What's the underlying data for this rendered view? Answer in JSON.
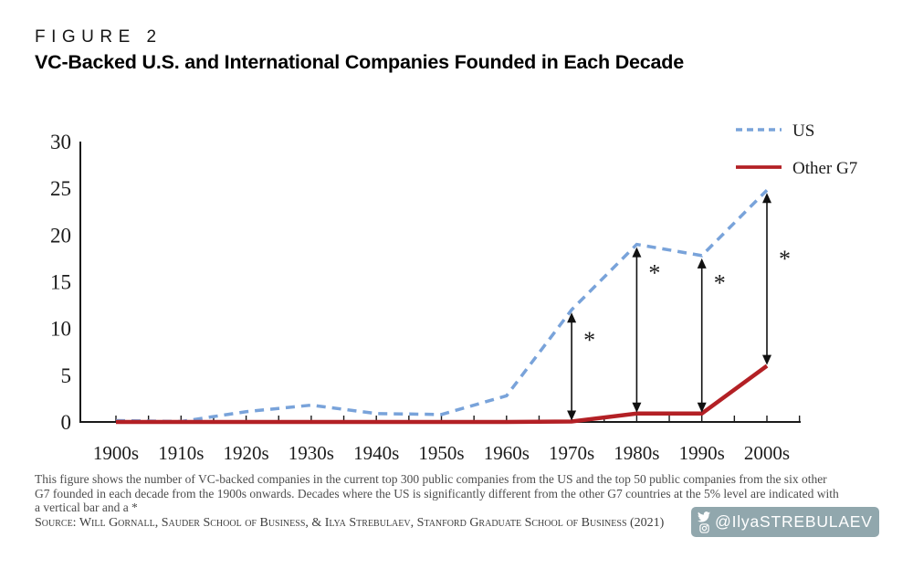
{
  "header": {
    "figure_label": "FIGURE 2",
    "title": "VC-Backed U.S. and International Companies Founded in Each Decade"
  },
  "chart_data": {
    "type": "line",
    "categories": [
      "1900s",
      "1910s",
      "1920s",
      "1930s",
      "1940s",
      "1950s",
      "1960s",
      "1970s",
      "1980s",
      "1990s",
      "2000s"
    ],
    "series": [
      {
        "name": "US",
        "style": "dashed",
        "color": "#79a3da",
        "values": [
          0.15,
          0.05,
          1.1,
          1.8,
          0.9,
          0.8,
          2.8,
          12,
          19,
          17.8,
          24.8
        ]
      },
      {
        "name": "Other G7",
        "style": "solid",
        "color": "#b32025",
        "values": [
          0,
          0,
          0,
          0,
          0,
          0,
          0,
          0.05,
          0.9,
          0.9,
          6
        ]
      }
    ],
    "ylabel": "",
    "xlabel": "",
    "ylim": [
      0,
      30
    ],
    "yticks": [
      0,
      5,
      10,
      15,
      20,
      25,
      30
    ],
    "grid": false,
    "legend_position": "top-right",
    "significance_markers": {
      "symbol": "*",
      "note": "double-headed vertical arrow between US and Other G7 lines",
      "decades": [
        "1970s",
        "1980s",
        "1990s",
        "2000s"
      ],
      "indices": [
        7,
        8,
        9,
        10
      ],
      "asterisk_offset_fraction": [
        0.25,
        0.155,
        0.157,
        0.38
      ]
    }
  },
  "legend": {
    "items": [
      "US",
      "Other G7"
    ]
  },
  "footnote": {
    "lines": [
      "This figure shows the number of VC-backed companies in the current top 300 public companies from the US and the top 50 public companies from the six other",
      "G7 founded in each decade from the 1900s onwards. Decades where the US is significantly different from the other G7 countries at the 5% level are indicated with",
      "a vertical bar and a *"
    ]
  },
  "source": "Source: Will Gornall, Sauder School of Business, & Ilya Strebulaev, Stanford Graduate School of Business (2021)",
  "badge": {
    "handle": "@IlyaSTREBULAEV",
    "background_color": "#91a7ad",
    "icons": [
      "twitter-icon",
      "instagram-icon"
    ]
  },
  "colors": {
    "us_line": "#79a3da",
    "other_g7_line": "#b32025",
    "axis": "#1a1a1a",
    "annotation": "#111111"
  }
}
